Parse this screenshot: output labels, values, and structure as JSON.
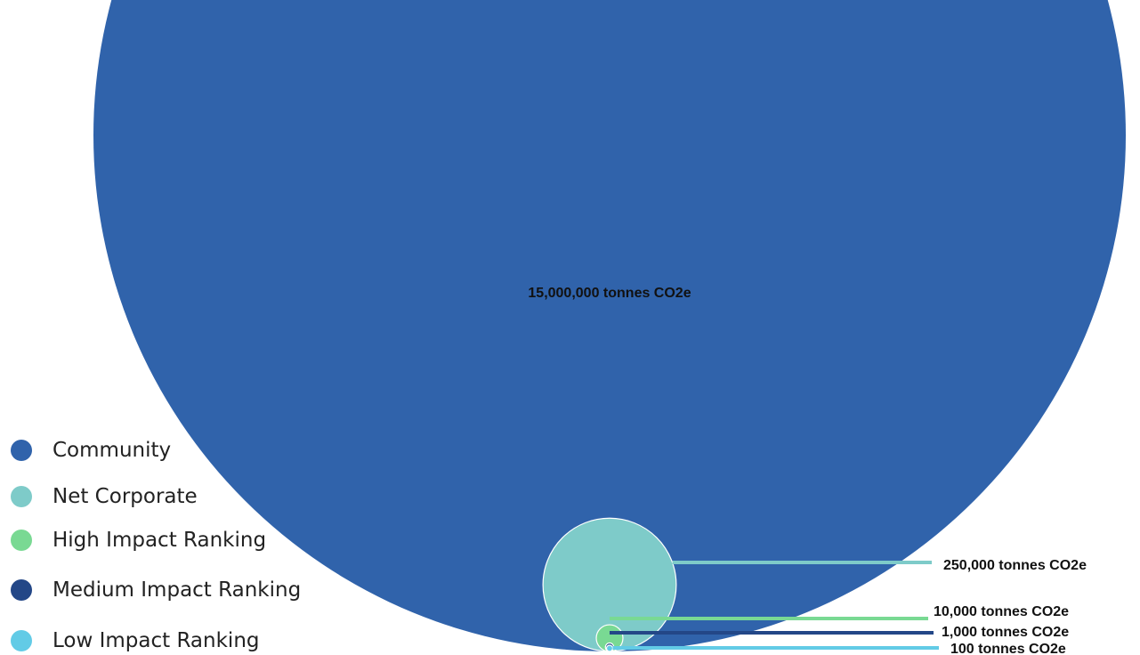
{
  "chart_data": {
    "type": "nested-circle",
    "unit": "tonnes CO2e",
    "series": [
      {
        "name": "Community",
        "value": 15000000,
        "label": "15,000,000 tonnes CO2e",
        "color": "#3063ab"
      },
      {
        "name": "Net Corporate",
        "value": 250000,
        "label": "250,000 tonnes CO2e",
        "color": "#7ecbc9"
      },
      {
        "name": "High Impact Ranking",
        "value": 10000,
        "label": "10,000 tonnes CO2e",
        "color": "#79d993"
      },
      {
        "name": "Medium Impact Ranking",
        "value": 1000,
        "label": "1,000 tonnes CO2e",
        "color": "#234787"
      },
      {
        "name": "Low Impact Ranking",
        "value": 100,
        "label": "100 tonnes CO2e",
        "color": "#62cbe6"
      }
    ],
    "legend_position": "bottom-left"
  }
}
